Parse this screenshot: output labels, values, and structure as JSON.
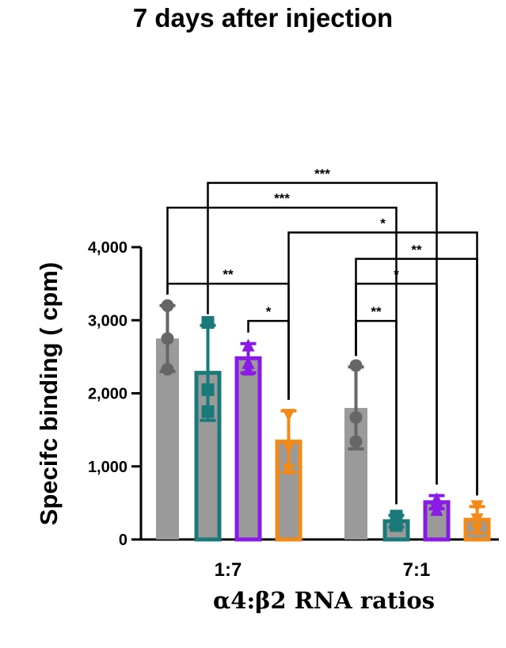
{
  "chart_data": {
    "type": "bar",
    "title": "7 days after injection",
    "ylabel": "Specifc binding ( cpm)",
    "xlabel": "α4:β2 RNA ratios",
    "ylim": [
      0,
      4000
    ],
    "yticks": [
      0,
      1000,
      2000,
      3000,
      4000
    ],
    "ytick_labels": [
      "0",
      "1,000",
      "2,000",
      "3,000",
      "4,000"
    ],
    "categories": [
      "1:7",
      "7:1"
    ],
    "series": [
      {
        "name": "gray",
        "color": "#666666",
        "fill": "#9a9a9a",
        "marker": "circle",
        "values": [
          2750,
          1800
        ],
        "errors": [
          450,
          560
        ],
        "points": [
          [
            3200,
            2750,
            2330
          ],
          [
            2380,
            1670,
            1340
          ]
        ]
      },
      {
        "name": "teal",
        "color": "#1a7a7a",
        "fill": "#9a9a9a",
        "marker": "square",
        "values": [
          2280,
          250
        ],
        "errors": [
          650,
          80
        ],
        "points": [
          [
            2970,
            2050,
            1750
          ],
          [
            320,
            250,
            190
          ]
        ]
      },
      {
        "name": "purple",
        "color": "#8a1be6",
        "fill": "#9a9a9a",
        "marker": "triangle",
        "values": [
          2480,
          510
        ],
        "errors": [
          200,
          90
        ],
        "points": [
          [
            2660,
            2420,
            2330
          ],
          [
            560,
            520,
            410
          ]
        ]
      },
      {
        "name": "orange",
        "color": "#f28a1a",
        "fill": "#9a9a9a",
        "marker": "triangle-down",
        "values": [
          1340,
          270
        ],
        "errors": [
          420,
          180
        ],
        "points": [
          [
            1700,
            1250,
            950
          ],
          [
            450,
            270,
            140
          ]
        ]
      }
    ],
    "significance": [
      {
        "label": "***",
        "from": [
          0,
          1
        ],
        "to": [
          1,
          2
        ],
        "level": 4880
      },
      {
        "label": "***",
        "from": [
          0,
          0
        ],
        "to": [
          1,
          1
        ],
        "level": 4540
      },
      {
        "label": "*",
        "from": [
          0,
          3
        ],
        "to": [
          1,
          3
        ],
        "level": 4200
      },
      {
        "label": "**",
        "from": [
          1,
          0
        ],
        "to": [
          1,
          3
        ],
        "level": 3840
      },
      {
        "label": "**",
        "from": [
          0,
          0
        ],
        "to": [
          0,
          3
        ],
        "level": 3500
      },
      {
        "label": "*",
        "from": [
          1,
          0
        ],
        "to": [
          1,
          2
        ],
        "level": 3500
      },
      {
        "label": "*",
        "from": [
          0,
          2
        ],
        "to": [
          0,
          3
        ],
        "level": 2990
      },
      {
        "label": "**",
        "from": [
          1,
          0
        ],
        "to": [
          1,
          1
        ],
        "level": 2990
      }
    ]
  }
}
